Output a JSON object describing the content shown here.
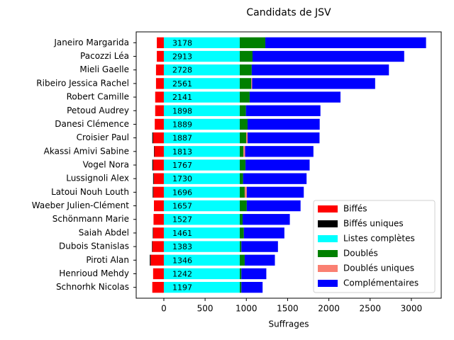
{
  "chart_data": {
    "type": "barh_stacked",
    "title": "Candidats de JSV",
    "xlabel": "Suffrages",
    "categories": [
      "Janeiro Margarida",
      "Pacozzi Léa",
      "Mieli Gaelle",
      "Ribeiro Jessica Rachel",
      "Robert Camille",
      "Petoud Audrey",
      "Danesi Clémence",
      "Croisier Paul",
      "Akassi Amivi Sabine",
      "Vogel Nora",
      "Lussignoli Alex",
      "Latoui Nouh Louth",
      "Waeber Julien-Clément",
      "Schönmann Marie",
      "Saiah Abdel",
      "Dubois Stanislas",
      "Piroti Alan",
      "Henrioud Mehdy",
      "Schnorhk Nicolas"
    ],
    "totals": [
      3178,
      2913,
      2728,
      2561,
      2141,
      1898,
      1889,
      1887,
      1813,
      1767,
      1730,
      1696,
      1657,
      1527,
      1461,
      1383,
      1346,
      1242,
      1197
    ],
    "series": [
      {
        "name": "Biffés",
        "color": "#ff0000",
        "values": [
          -85,
          -85,
          -95,
          -95,
          -105,
          -105,
          -110,
          -130,
          -115,
          -130,
          -122,
          -127,
          -120,
          -125,
          -130,
          -140,
          -160,
          -130,
          -140
        ]
      },
      {
        "name": "Biffés uniques",
        "color": "#000000",
        "values": [
          0,
          0,
          0,
          0,
          0,
          0,
          0,
          -10,
          -5,
          -10,
          -8,
          -8,
          0,
          0,
          -5,
          -5,
          -10,
          0,
          0
        ]
      },
      {
        "name": "Listes complètes",
        "color": "#00ffff",
        "values": [
          920,
          920,
          920,
          920,
          920,
          920,
          920,
          920,
          920,
          920,
          920,
          920,
          920,
          920,
          920,
          920,
          920,
          920,
          920
        ]
      },
      {
        "name": "Doublés",
        "color": "#008000",
        "values": [
          310,
          155,
          145,
          140,
          120,
          75,
          95,
          80,
          45,
          70,
          40,
          60,
          85,
          35,
          50,
          20,
          60,
          20,
          20
        ]
      },
      {
        "name": "Doublés uniques",
        "color": "#fa8072",
        "values": [
          0,
          0,
          0,
          10,
          0,
          0,
          0,
          15,
          20,
          0,
          0,
          25,
          0,
          0,
          0,
          0,
          0,
          0,
          0
        ]
      },
      {
        "name": "Complémentaires",
        "color": "#0000ff",
        "values": [
          1948,
          1838,
          1663,
          1491,
          1101,
          903,
          874,
          872,
          828,
          777,
          770,
          691,
          652,
          572,
          491,
          443,
          366,
          302,
          257
        ]
      }
    ],
    "xlim": [
      -335,
      3362
    ],
    "xticks": [
      0,
      500,
      1000,
      1500,
      2000,
      2500,
      3000
    ],
    "legend": "lower right"
  }
}
